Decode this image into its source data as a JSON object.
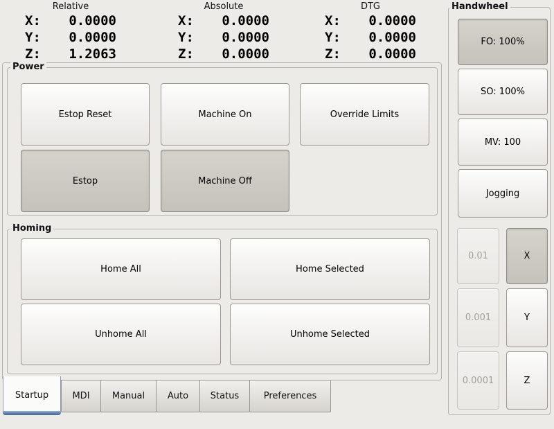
{
  "dro": {
    "groups": [
      {
        "header": "Relative",
        "axes": [
          {
            "label": "X:",
            "value": "0.0000"
          },
          {
            "label": "Y:",
            "value": "0.0000"
          },
          {
            "label": "Z:",
            "value": "1.2063"
          }
        ]
      },
      {
        "header": "Absolute",
        "axes": [
          {
            "label": "X:",
            "value": "0.0000"
          },
          {
            "label": "Y:",
            "value": "0.0000"
          },
          {
            "label": "Z:",
            "value": "0.0000"
          }
        ]
      },
      {
        "header": "DTG",
        "axes": [
          {
            "label": "X:",
            "value": "0.0000"
          },
          {
            "label": "Y:",
            "value": "0.0000"
          },
          {
            "label": "Z:",
            "value": "0.0000"
          }
        ]
      }
    ]
  },
  "power": {
    "title": "Power",
    "estop_reset": "Estop Reset",
    "machine_on": "Machine On",
    "override_limits": "Override Limits",
    "estop": "Estop",
    "machine_off": "Machine Off"
  },
  "homing": {
    "title": "Homing",
    "home_all": "Home All",
    "home_selected": "Home Selected",
    "unhome_all": "Unhome All",
    "unhome_selected": "Unhome Selected"
  },
  "handwheel": {
    "title": "Handwheel",
    "feed_override": "FO: 100%",
    "spindle_override": "SO: 100%",
    "max_velocity": "MV: 100",
    "jogging": "Jogging",
    "increments": [
      "0.01",
      "0.001",
      "0.0001"
    ],
    "axes": [
      "X",
      "Y",
      "Z"
    ]
  },
  "tabs": [
    "Startup",
    "MDI",
    "Manual",
    "Auto",
    "Status",
    "Preferences"
  ],
  "colors": {
    "background": "#ecebe8",
    "pressed_gray": "#ccc9c3",
    "accent_blue": "#5d7ba4",
    "disabled_text": "#a3a19b"
  }
}
